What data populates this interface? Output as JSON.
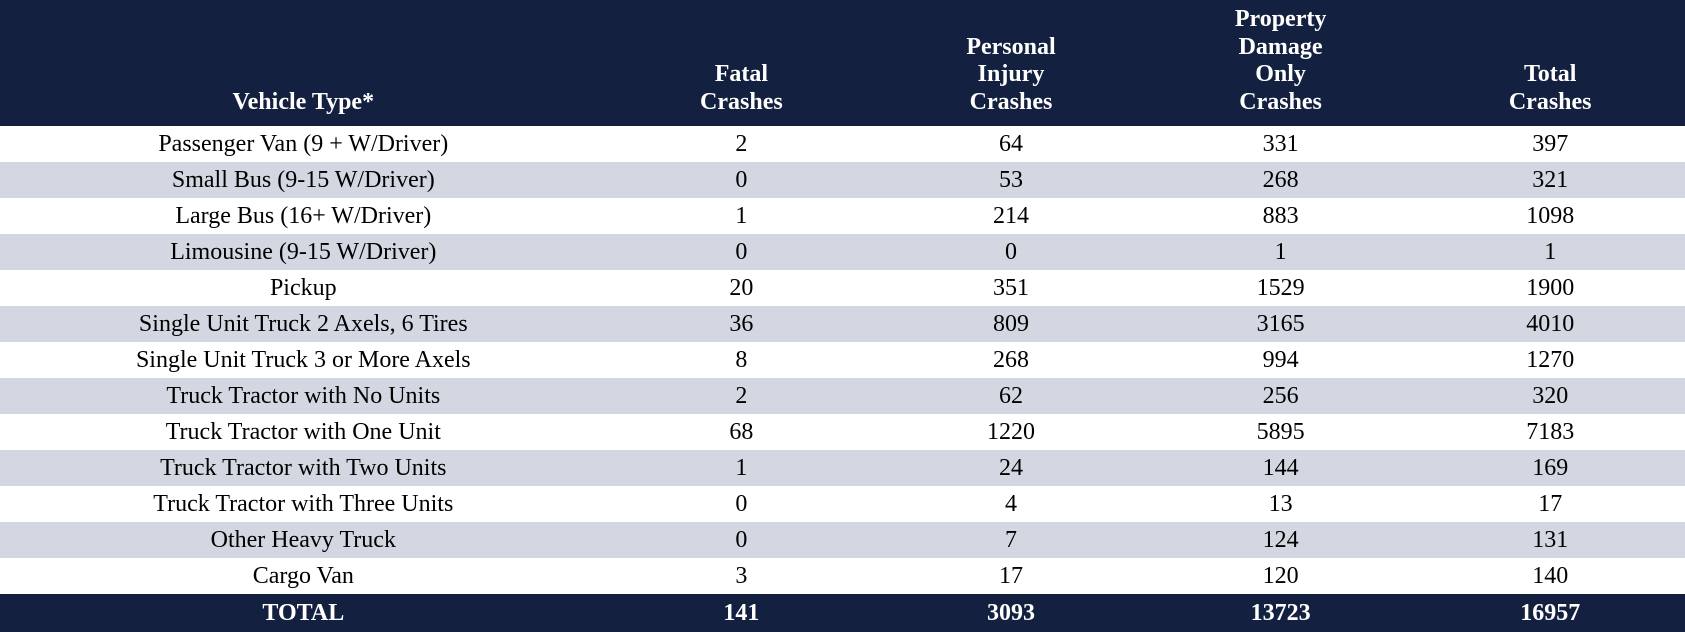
{
  "table": {
    "header_bg_color": "#13203f",
    "header_text_color": "#ffffff",
    "row_odd_bg_color": "#ffffff",
    "row_even_bg_color": "#d2d7e1",
    "total_bg_color": "#13203f",
    "total_text_color": "#ffffff",
    "font_family": "Times New Roman",
    "header_fontsize": 24,
    "body_fontsize": 24,
    "columns": [
      "Vehicle Type*",
      "Fatal Crashes",
      "Personal Injury Crashes",
      "Property Damage Only Crashes",
      "Total Crashes"
    ],
    "rows": [
      {
        "type": "Passenger Van (9 + W/Driver)",
        "fatal": "2",
        "injury": "64",
        "property": "331",
        "total": "397"
      },
      {
        "type": "Small Bus (9-15 W/Driver)",
        "fatal": "0",
        "injury": "53",
        "property": "268",
        "total": "321"
      },
      {
        "type": "Large Bus (16+ W/Driver)",
        "fatal": "1",
        "injury": "214",
        "property": "883",
        "total": "1098"
      },
      {
        "type": "Limousine (9-15 W/Driver)",
        "fatal": "0",
        "injury": "0",
        "property": "1",
        "total": "1"
      },
      {
        "type": "Pickup",
        "fatal": "20",
        "injury": "351",
        "property": "1529",
        "total": "1900"
      },
      {
        "type": "Single Unit Truck 2 Axels, 6 Tires",
        "fatal": "36",
        "injury": "809",
        "property": "3165",
        "total": "4010"
      },
      {
        "type": "Single Unit Truck 3 or More Axels",
        "fatal": "8",
        "injury": "268",
        "property": "994",
        "total": "1270"
      },
      {
        "type": "Truck Tractor with No Units",
        "fatal": "2",
        "injury": "62",
        "property": "256",
        "total": "320"
      },
      {
        "type": "Truck Tractor with One Unit",
        "fatal": "68",
        "injury": "1220",
        "property": "5895",
        "total": "7183"
      },
      {
        "type": "Truck Tractor with Two Units",
        "fatal": "1",
        "injury": "24",
        "property": "144",
        "total": "169"
      },
      {
        "type": "Truck Tractor with Three Units",
        "fatal": "0",
        "injury": "4",
        "property": "13",
        "total": "17"
      },
      {
        "type": "Other Heavy Truck",
        "fatal": "0",
        "injury": "7",
        "property": "124",
        "total": "131"
      },
      {
        "type": "Cargo Van",
        "fatal": "3",
        "injury": "17",
        "property": "120",
        "total": "140"
      }
    ],
    "total_row": {
      "label": "TOTAL",
      "fatal": "141",
      "injury": "3093",
      "property": "13723",
      "total": "16957"
    }
  }
}
